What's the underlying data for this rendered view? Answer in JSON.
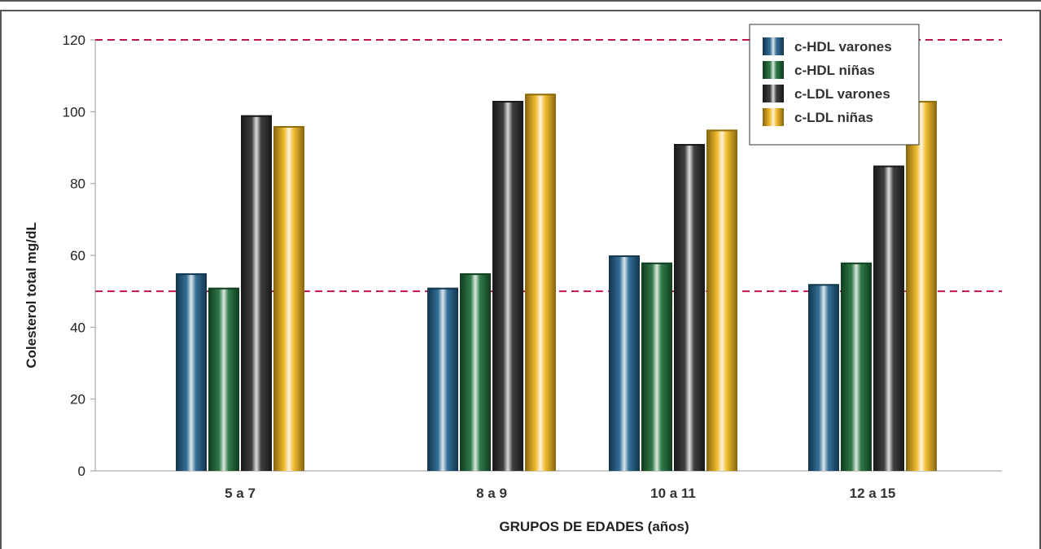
{
  "chart_data": {
    "type": "bar",
    "categories": [
      "5 a 7",
      "8 a 9",
      "10 a 11",
      "12 a 15"
    ],
    "series": [
      {
        "name": "c-HDL varones",
        "values": [
          55,
          51,
          60,
          52
        ],
        "color": "#1f5f8b"
      },
      {
        "name": "c-HDL niñas",
        "values": [
          51,
          55,
          58,
          58
        ],
        "color": "#1a6b34"
      },
      {
        "name": "c-LDL varones",
        "values": [
          99,
          103,
          91,
          85
        ],
        "color": "#2a2a2a"
      },
      {
        "name": "c-LDL niñas",
        "values": [
          96,
          105,
          95,
          103
        ],
        "color": "#f2b619"
      }
    ],
    "xlabel": "GRUPOS DE EDADES (años)",
    "ylabel": "Colesterol total mg/dL",
    "ylim": [
      0,
      120
    ],
    "yticks": [
      0,
      20,
      40,
      60,
      80,
      100,
      120
    ],
    "reference_lines": [
      120,
      50
    ],
    "reference_line_color": "#c0144c",
    "grid": false,
    "legend_position": "top-right"
  }
}
